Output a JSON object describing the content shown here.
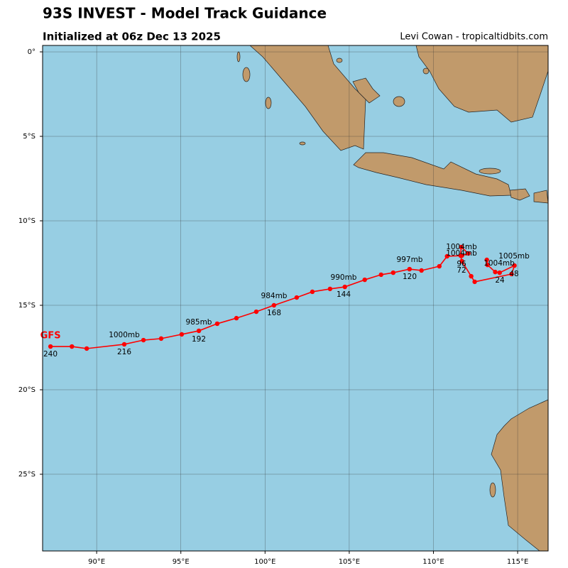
{
  "chart_data": {
    "type": "line",
    "title": "93S INVEST - Model Track Guidance",
    "subtitle": "Initialized at 06z Dec 13 2025",
    "credit": "Levi Cowan - tropicaltidbits.com",
    "x": [
      113.17,
      113.21,
      113.67,
      113.93,
      114.81,
      114.64,
      112.45,
      112.24,
      111.69,
      111.61,
      111.65,
      112.07,
      111.69,
      110.81,
      110.35,
      109.29,
      108.58,
      107.61,
      106.89,
      105.92,
      104.74,
      103.86,
      102.81,
      101.88,
      100.53,
      99.48,
      98.3,
      97.16,
      96.07,
      95.05,
      93.83,
      92.78,
      91.64,
      89.41,
      88.53,
      87.26
    ],
    "series": [
      {
        "name": "GFS",
        "color": "#ff0000",
        "values": [
          -12.31,
          -12.61,
          -13.03,
          -13.07,
          -12.65,
          -13.15,
          -13.61,
          -13.28,
          -12.39,
          -12.06,
          -11.55,
          -11.93,
          -12.06,
          -12.1,
          -12.69,
          -12.94,
          -12.86,
          -13.07,
          -13.19,
          -13.49,
          -13.91,
          -14.03,
          -14.2,
          -14.54,
          -15.0,
          -15.38,
          -15.76,
          -16.09,
          -16.51,
          -16.72,
          -16.97,
          -17.06,
          -17.31,
          -17.56,
          -17.44,
          -17.44
        ]
      }
    ],
    "pressure_labels": [
      "1004mb",
      "1004mb",
      "1005mb",
      "1004mb",
      "997mb",
      "990mb",
      "984mb",
      "985mb",
      "1000mb"
    ],
    "hour_labels": [
      24,
      48,
      72,
      96,
      120,
      144,
      168,
      192,
      216,
      240
    ],
    "xlim": [
      86.79,
      116.81
    ],
    "ylim": [
      -29.54,
      0.38
    ],
    "xticks": [
      {
        "value": 90,
        "label": "90°E"
      },
      {
        "value": 95,
        "label": "95°E"
      },
      {
        "value": 100,
        "label": "100°E"
      },
      {
        "value": 105,
        "label": "105°E"
      },
      {
        "value": 110,
        "label": "110°E"
      },
      {
        "value": 115,
        "label": "115°E"
      }
    ],
    "yticks": [
      {
        "value": 0,
        "label": "0°"
      },
      {
        "value": -5,
        "label": "5°S"
      },
      {
        "value": -10,
        "label": "10°S"
      },
      {
        "value": -15,
        "label": "15°S"
      },
      {
        "value": -20,
        "label": "20°S"
      },
      {
        "value": -25,
        "label": "25°S"
      }
    ],
    "grid": true
  }
}
